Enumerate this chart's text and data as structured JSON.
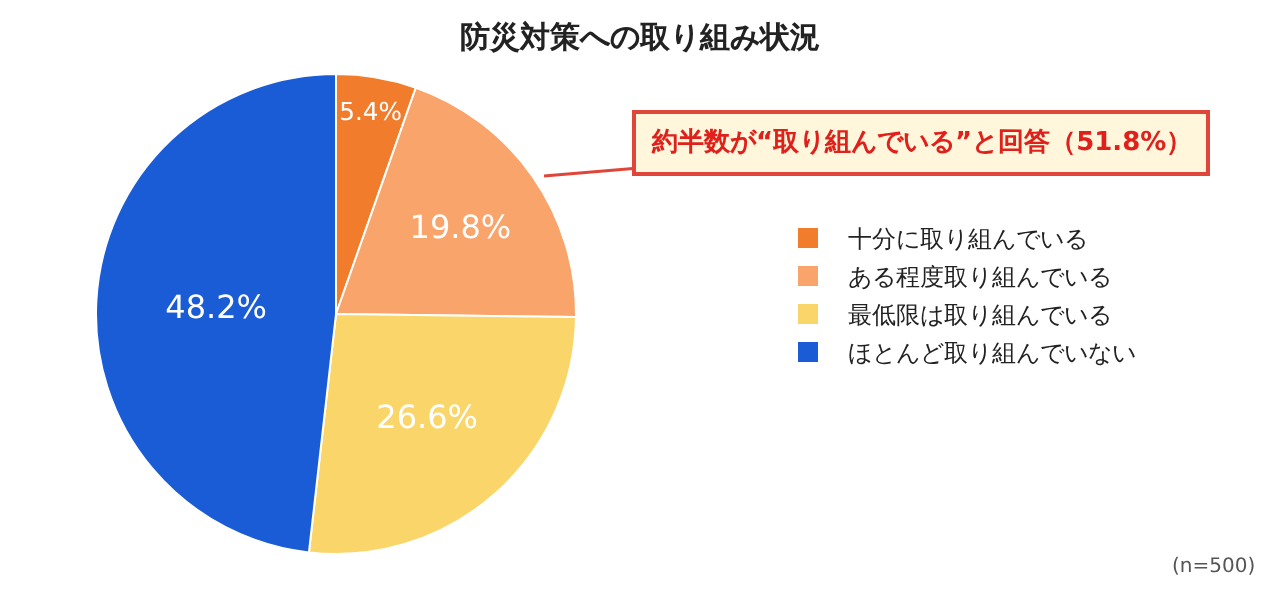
{
  "chart_data": {
    "type": "pie",
    "title": "防災対策への取り組み状況",
    "categories": [
      "十分に取り組んでいる",
      "ある程度取り組んでいる",
      "最低限は取り組んでいる",
      "ほとんど取り組んでいない"
    ],
    "values": [
      5.4,
      19.8,
      26.6,
      48.2
    ],
    "value_labels": [
      "5.4%",
      "19.8%",
      "26.6%",
      "48.2%"
    ],
    "colors": [
      "#f07c2c",
      "#f9a46a",
      "#fad66a",
      "#1a5bd6"
    ],
    "legend": "right",
    "annotations": [
      "約半数が“取り組んでいる”と回答（51.8%）",
      "(n=500)"
    ]
  }
}
